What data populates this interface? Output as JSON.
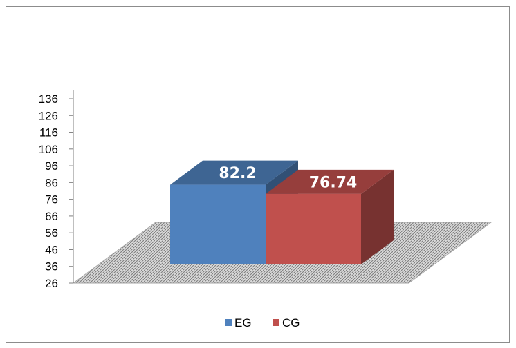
{
  "chart_data": {
    "type": "bar",
    "categories": [
      ""
    ],
    "series": [
      {
        "name": "EG",
        "values": [
          82.2
        ],
        "color": "#4f81bd",
        "label": "82.2"
      },
      {
        "name": "CG",
        "values": [
          76.74
        ],
        "color": "#c0504d",
        "label": "76.74"
      }
    ],
    "y_ticks": [
      "136",
      "126",
      "116",
      "106",
      "96",
      "86",
      "76",
      "66",
      "56",
      "46",
      "36",
      "26"
    ],
    "ylim": [
      26,
      136
    ],
    "legend_position": "bottom",
    "grid": false,
    "style": "3d-column"
  }
}
